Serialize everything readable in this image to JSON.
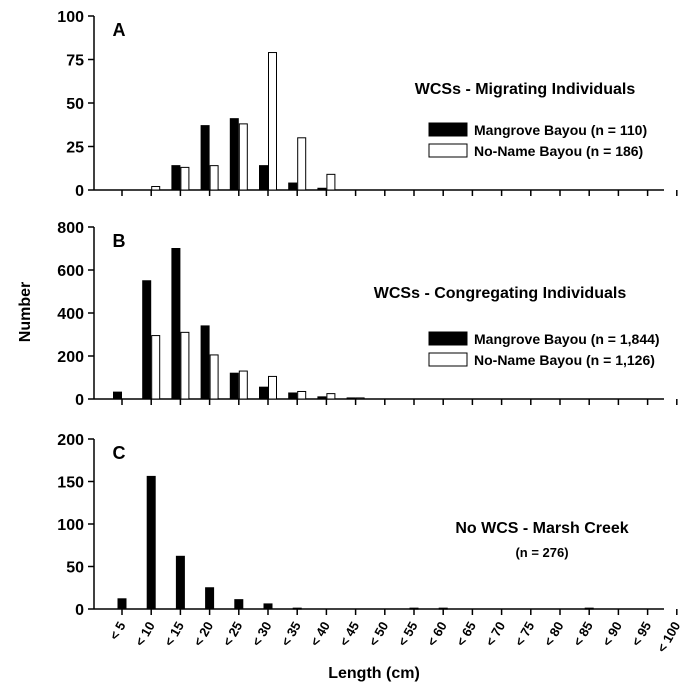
{
  "figure": {
    "ylabel": "Number",
    "xlabel": "Length (cm)",
    "categories": [
      "< 5",
      "< 10",
      "< 15",
      "< 20",
      "< 25",
      "< 30",
      "< 35",
      "< 40",
      "< 45",
      "< 50",
      "< 55",
      "< 60",
      "< 65",
      "< 70",
      "< 75",
      "< 80",
      "< 85",
      "< 90",
      "< 95",
      "< 100"
    ]
  },
  "chart_data": [
    {
      "type": "bar",
      "panel_letter": "A",
      "title": "WCSs - Migrating Individuals",
      "categories": [
        "< 5",
        "< 10",
        "< 15",
        "< 20",
        "< 25",
        "< 30",
        "< 35",
        "< 40",
        "< 45",
        "< 50",
        "< 55",
        "< 60",
        "< 65",
        "< 70",
        "< 75",
        "< 80",
        "< 85",
        "< 90",
        "< 95",
        "< 100"
      ],
      "ylim": [
        0,
        100
      ],
      "yticks": [
        "0",
        "25",
        "50",
        "75",
        "100"
      ],
      "ytick_values": [
        0,
        25,
        50,
        75,
        100
      ],
      "legend_placement": "right",
      "series": [
        {
          "name": "Mangrove Bayou (n = 110)",
          "color": "#000000",
          "values": [
            0,
            0,
            14,
            37,
            41,
            14,
            4,
            1,
            0,
            0,
            0,
            0,
            0,
            0,
            0,
            0,
            0,
            0,
            0,
            0
          ]
        },
        {
          "name": "No-Name Bayou (n = 186)",
          "color": "#ffffff",
          "values": [
            0,
            2,
            13,
            14,
            38,
            79,
            30,
            9,
            0,
            0,
            0,
            0,
            0,
            0,
            0,
            0,
            0,
            0,
            0,
            0
          ]
        }
      ]
    },
    {
      "type": "bar",
      "panel_letter": "B",
      "title": "WCSs - Congregating Individuals",
      "categories": [
        "< 5",
        "< 10",
        "< 15",
        "< 20",
        "< 25",
        "< 30",
        "< 35",
        "< 40",
        "< 45",
        "< 50",
        "< 55",
        "< 60",
        "< 65",
        "< 70",
        "< 75",
        "< 80",
        "< 85",
        "< 90",
        "< 95",
        "< 100"
      ],
      "ylim": [
        0,
        800
      ],
      "yticks": [
        "0",
        "200",
        "400",
        "600",
        "800"
      ],
      "ytick_values": [
        0,
        200,
        400,
        600,
        800
      ],
      "legend_placement": "right",
      "series": [
        {
          "name": "Mangrove Bayou (n = 1,844)",
          "color": "#000000",
          "values": [
            32,
            550,
            700,
            340,
            120,
            55,
            28,
            10,
            5,
            0,
            0,
            0,
            0,
            0,
            0,
            0,
            0,
            0,
            0,
            0
          ]
        },
        {
          "name": "No-Name Bayou (n = 1,126)",
          "color": "#ffffff",
          "values": [
            0,
            295,
            310,
            205,
            130,
            105,
            35,
            25,
            5,
            0,
            0,
            0,
            0,
            0,
            0,
            0,
            0,
            0,
            0,
            0
          ]
        }
      ]
    },
    {
      "type": "bar",
      "panel_letter": "C",
      "title": "No WCS - Marsh Creek",
      "subtitle": "(n = 276)",
      "categories": [
        "< 5",
        "< 10",
        "< 15",
        "< 20",
        "< 25",
        "< 30",
        "< 35",
        "< 40",
        "< 45",
        "< 50",
        "< 55",
        "< 60",
        "< 65",
        "< 70",
        "< 75",
        "< 80",
        "< 85",
        "< 90",
        "< 95",
        "< 100"
      ],
      "ylim": [
        0,
        200
      ],
      "yticks": [
        "0",
        "50",
        "100",
        "150",
        "200"
      ],
      "ytick_values": [
        0,
        50,
        100,
        150,
        200
      ],
      "series": [
        {
          "color": "#000000",
          "values": [
            12,
            156,
            62,
            25,
            11,
            6,
            1,
            0,
            0,
            0,
            1,
            1,
            0,
            0,
            0,
            0,
            1,
            0,
            0,
            0
          ]
        }
      ]
    }
  ]
}
